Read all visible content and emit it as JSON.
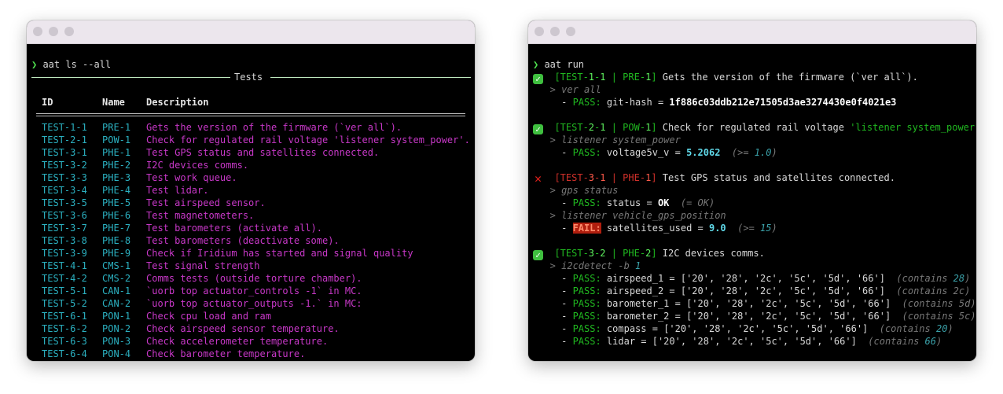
{
  "left": {
    "command": "aat ls --all",
    "table_title": "Tests",
    "headers": [
      "ID",
      "Name",
      "Description"
    ],
    "rows": [
      [
        "TEST-1-1",
        "PRE-1",
        "Gets the version of the firmware (`ver all`)."
      ],
      [
        "TEST-2-1",
        "POW-1",
        "Check for regulated rail voltage 'listener system_power'."
      ],
      [
        "TEST-3-1",
        "PHE-1",
        "Test GPS status and satellites connected."
      ],
      [
        "TEST-3-2",
        "PHE-2",
        "I2C devices comms."
      ],
      [
        "TEST-3-3",
        "PHE-3",
        "Test work queue."
      ],
      [
        "TEST-3-4",
        "PHE-4",
        "Test lidar."
      ],
      [
        "TEST-3-5",
        "PHE-5",
        "Test airspeed sensor."
      ],
      [
        "TEST-3-6",
        "PHE-6",
        "Test magnetometers."
      ],
      [
        "TEST-3-7",
        "PHE-7",
        "Test barometers (activate all)."
      ],
      [
        "TEST-3-8",
        "PHE-8",
        "Test barometers (deactivate some)."
      ],
      [
        "TEST-3-9",
        "PHE-9",
        "Check if Iridium has started and signal quality"
      ],
      [
        "TEST-4-1",
        "CMS-1",
        "Test signal strength"
      ],
      [
        "TEST-4-2",
        "CMS-2",
        "Comms tests (outside torture chamber)."
      ],
      [
        "TEST-5-1",
        "CAN-1",
        "`uorb top actuator_controls -1` in MC."
      ],
      [
        "TEST-5-2",
        "CAN-2",
        "`uorb top actuator_outputs -1.` in MC:"
      ],
      [
        "TEST-6-1",
        "PON-1",
        "Check cpu load and ram"
      ],
      [
        "TEST-6-2",
        "PON-2",
        "Check airspeed sensor temperature."
      ],
      [
        "TEST-6-3",
        "PON-3",
        "Check accelerometer temperature."
      ],
      [
        "TEST-6-4",
        "PON-4",
        "Check barometer temperature."
      ]
    ]
  },
  "right": {
    "command": "aat run",
    "lines": [
      {
        "icon": "pass",
        "segs": [
          [
            "  [TEST-",
            "g"
          ],
          [
            "1",
            "gb"
          ],
          [
            "-",
            "g"
          ],
          [
            "1",
            "gb"
          ],
          [
            " | PRE-",
            "g"
          ],
          [
            "1",
            "gb"
          ],
          [
            "] ",
            "g"
          ],
          [
            "Gets the version of the firmware (`ver all`).",
            ""
          ]
        ]
      },
      {
        "segs": [
          [
            "   > ",
            "dim"
          ],
          [
            "ver all",
            "dim"
          ]
        ]
      },
      {
        "segs": [
          [
            "     - ",
            ""
          ],
          [
            "PASS:",
            "g"
          ],
          [
            " git-hash = ",
            ""
          ],
          [
            "1f886c03ddb212e71505d3ae3274430e0f4021e3",
            "wb"
          ]
        ]
      },
      {
        "segs": []
      },
      {
        "icon": "pass",
        "segs": [
          [
            "  [TEST-",
            "g"
          ],
          [
            "2",
            "gb"
          ],
          [
            "-",
            "g"
          ],
          [
            "1",
            "gb"
          ],
          [
            " | POW-",
            "g"
          ],
          [
            "1",
            "gb"
          ],
          [
            "] ",
            "g"
          ],
          [
            "Check for regulated rail voltage ",
            ""
          ],
          [
            "'listener system_power'",
            "g"
          ],
          [
            ".",
            ""
          ]
        ]
      },
      {
        "segs": [
          [
            "   > ",
            "dim"
          ],
          [
            "listener system_power",
            "dim"
          ]
        ]
      },
      {
        "segs": [
          [
            "     - ",
            ""
          ],
          [
            "PASS:",
            "g"
          ],
          [
            " voltage5v_v = ",
            ""
          ],
          [
            "5.2062",
            "num"
          ],
          [
            "  (>= ",
            "dim"
          ],
          [
            "1.0",
            "dimb"
          ],
          [
            ")",
            "dim"
          ]
        ]
      },
      {
        "segs": []
      },
      {
        "icon": "fail",
        "segs": [
          [
            "  [TEST-",
            "r"
          ],
          [
            "3",
            "rb"
          ],
          [
            "-",
            "r"
          ],
          [
            "1",
            "rb"
          ],
          [
            " | PHE-",
            "r"
          ],
          [
            "1",
            "rb"
          ],
          [
            "] ",
            "r"
          ],
          [
            "Test GPS status and satellites connected.",
            ""
          ]
        ]
      },
      {
        "segs": [
          [
            "   > ",
            "dim"
          ],
          [
            "gps status",
            "dim"
          ]
        ]
      },
      {
        "segs": [
          [
            "     - ",
            ""
          ],
          [
            "PASS:",
            "g"
          ],
          [
            " status = ",
            ""
          ],
          [
            "OK",
            "wb"
          ],
          [
            "  (= OK)",
            "dim"
          ]
        ]
      },
      {
        "segs": [
          [
            "   > ",
            "dim"
          ],
          [
            "listener vehicle_gps_position",
            "dim"
          ]
        ]
      },
      {
        "segs": [
          [
            "     - ",
            ""
          ],
          [
            "FAIL:",
            "fail"
          ],
          [
            " satellites_used = ",
            ""
          ],
          [
            "9.0",
            "num"
          ],
          [
            "  (>= ",
            "dim"
          ],
          [
            "15",
            "dimb"
          ],
          [
            ")",
            "dim"
          ]
        ]
      },
      {
        "segs": []
      },
      {
        "icon": "pass",
        "segs": [
          [
            "  [TEST-",
            "g"
          ],
          [
            "3",
            "gb"
          ],
          [
            "-",
            "g"
          ],
          [
            "2",
            "gb"
          ],
          [
            " | PHE-",
            "g"
          ],
          [
            "2",
            "gb"
          ],
          [
            "] ",
            "g"
          ],
          [
            "I2C devices comms.",
            ""
          ]
        ]
      },
      {
        "segs": [
          [
            "   > ",
            "dim"
          ],
          [
            "i2cdetect -b ",
            "dim"
          ],
          [
            "1",
            "dimb"
          ]
        ]
      },
      {
        "segs": [
          [
            "     - ",
            ""
          ],
          [
            "PASS:",
            "g"
          ],
          [
            " airspeed_1 = ",
            ""
          ],
          [
            "['20', '28', '2c', '5c', '5d', '66']",
            ""
          ],
          [
            "  (contains ",
            "dim"
          ],
          [
            "28",
            "dimb"
          ],
          [
            ")",
            "dim"
          ]
        ]
      },
      {
        "segs": [
          [
            "     - ",
            ""
          ],
          [
            "PASS:",
            "g"
          ],
          [
            " airspeed_2 = ",
            ""
          ],
          [
            "['20', '28', '2c', '5c', '5d', '66']",
            ""
          ],
          [
            "  (contains 2c)",
            "dim"
          ]
        ]
      },
      {
        "segs": [
          [
            "     - ",
            ""
          ],
          [
            "PASS:",
            "g"
          ],
          [
            " barometer_1 = ",
            ""
          ],
          [
            "['20', '28', '2c', '5c', '5d', '66']",
            ""
          ],
          [
            "  (contains 5d)",
            "dim"
          ]
        ]
      },
      {
        "segs": [
          [
            "     - ",
            ""
          ],
          [
            "PASS:",
            "g"
          ],
          [
            " barometer_2 = ",
            ""
          ],
          [
            "['20', '28', '2c', '5c', '5d', '66']",
            ""
          ],
          [
            "  (contains 5c)",
            "dim"
          ]
        ]
      },
      {
        "segs": [
          [
            "     - ",
            ""
          ],
          [
            "PASS:",
            "g"
          ],
          [
            " compass = ",
            ""
          ],
          [
            "['20', '28', '2c', '5c', '5d', '66']",
            ""
          ],
          [
            "  (contains ",
            "dim"
          ],
          [
            "20",
            "dimb"
          ],
          [
            ")",
            "dim"
          ]
        ]
      },
      {
        "segs": [
          [
            "     - ",
            ""
          ],
          [
            "PASS:",
            "g"
          ],
          [
            " lidar = ",
            ""
          ],
          [
            "['20', '28', '2c', '5c', '5d', '66']",
            ""
          ],
          [
            "  (contains ",
            "dim"
          ],
          [
            "66",
            "dimb"
          ],
          [
            ")",
            "dim"
          ]
        ]
      }
    ]
  },
  "colors": {
    "pass": "#3fbf3f",
    "fail": "#e0201c",
    "id": "#2bb0c0",
    "description": "#c838c8"
  }
}
